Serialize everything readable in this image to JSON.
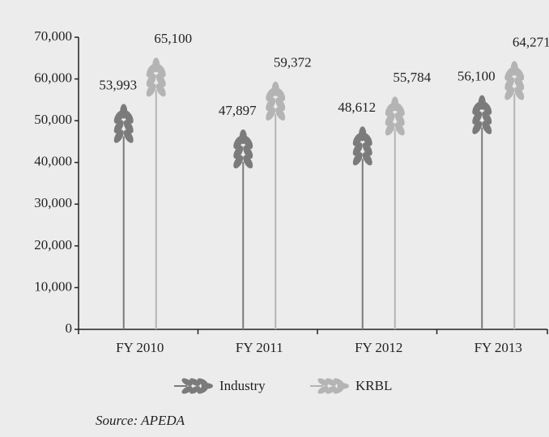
{
  "chart_data": {
    "type": "pictorial-bar",
    "categories": [
      "FY 2010",
      "FY 2011",
      "FY 2012",
      "FY 2013"
    ],
    "series": [
      {
        "name": "Industry",
        "color": "#7b7b7b",
        "values": [
          53993,
          47897,
          48612,
          56100
        ],
        "value_labels": [
          "53,993",
          "47,897",
          "48,612",
          "56,100"
        ]
      },
      {
        "name": "KRBL",
        "color": "#b4b4b4",
        "values": [
          65100,
          59372,
          55784,
          64271
        ],
        "value_labels": [
          "65,100",
          "59,372",
          "55,784",
          "64,271"
        ]
      }
    ],
    "ylim": [
      0,
      70000
    ],
    "yticks": [
      0,
      {
        "value": 10000,
        "label": "10,000"
      },
      {
        "value": 20000,
        "label": "20,000"
      },
      {
        "value": 30000,
        "label": "30,000"
      },
      {
        "value": 40000,
        "label": "40,000"
      },
      {
        "value": 50000,
        "label": "50,000"
      },
      {
        "value": 60000,
        "label": "60,000"
      },
      {
        "value": 70000,
        "label": "70,000"
      }
    ],
    "legend": "bottom",
    "source": "Source: APEDA"
  }
}
